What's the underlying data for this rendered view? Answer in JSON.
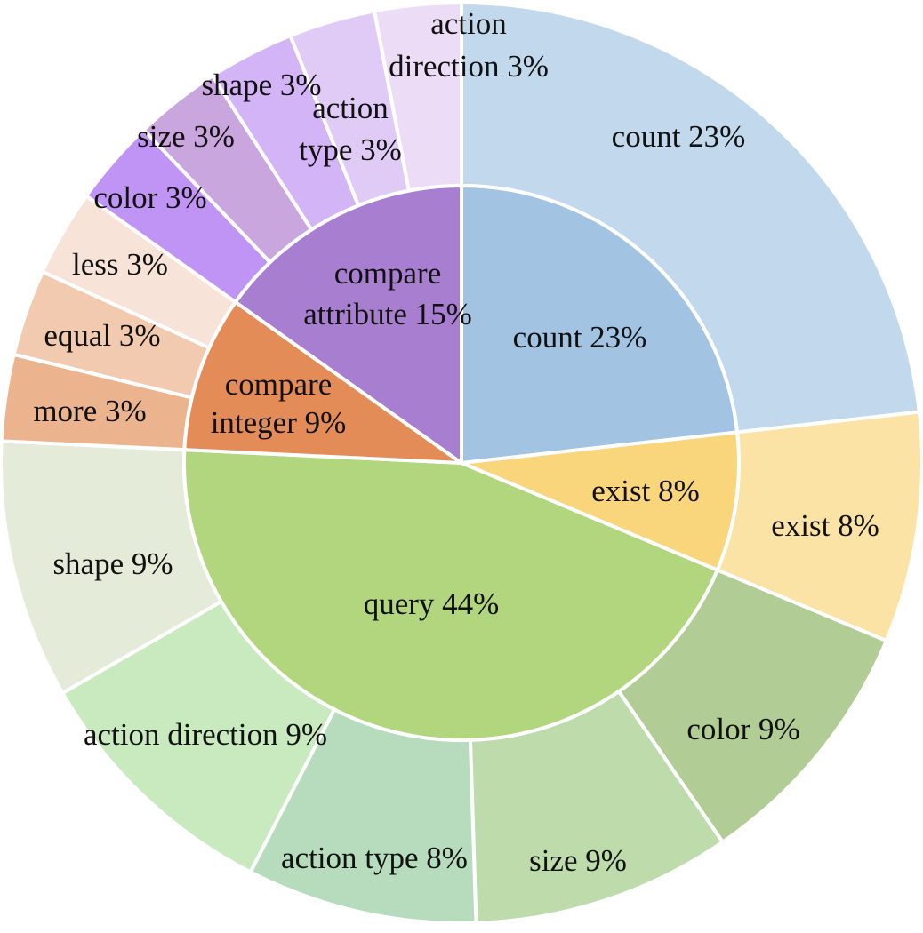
{
  "chart_data": {
    "type": "sunburst",
    "unit": "%",
    "inner": [
      {
        "label": "count 23%",
        "value": 23,
        "color": "#a3c3e3"
      },
      {
        "label": "exist 8%",
        "value": 8,
        "color": "#f9d57c"
      },
      {
        "label": "query 44%",
        "value": 44,
        "color": "#b2d67e"
      },
      {
        "label": "compare integer 9%",
        "value": 9,
        "color": "#e38c57"
      },
      {
        "label": "compare attribute 15%",
        "value": 15,
        "color": "#a87fd0"
      }
    ],
    "outer": [
      {
        "parent": "count",
        "label": "count 23%",
        "value": 23,
        "color": "#c2d8ec"
      },
      {
        "parent": "exist",
        "label": "exist 8%",
        "value": 8,
        "color": "#fbe3a5"
      },
      {
        "parent": "query",
        "label": "color 9%",
        "value": 9,
        "color": "#b2cc95"
      },
      {
        "parent": "query",
        "label": "size 9%",
        "value": 9,
        "color": "#bedcab"
      },
      {
        "parent": "query",
        "label": "action type 8%",
        "value": 8,
        "color": "#b6dcbd"
      },
      {
        "parent": "query",
        "label": "action direction 9%",
        "value": 9,
        "color": "#c9e9bf"
      },
      {
        "parent": "query",
        "label": "shape 9%",
        "value": 9,
        "color": "#e4ecd9"
      },
      {
        "parent": "compare integer",
        "label": "more 3%",
        "value": 3,
        "color": "#ecb48e"
      },
      {
        "parent": "compare integer",
        "label": "equal 3%",
        "value": 3,
        "color": "#f1cab0"
      },
      {
        "parent": "compare integer",
        "label": "less 3%",
        "value": 3,
        "color": "#f7e3d7"
      },
      {
        "parent": "compare attribute",
        "label": "color 3%",
        "value": 3,
        "color": "#bf94f4"
      },
      {
        "parent": "compare attribute",
        "label": "size 3%",
        "value": 3,
        "color": "#c9a6dd"
      },
      {
        "parent": "compare attribute",
        "label": "shape 3%",
        "value": 3,
        "color": "#d3b4f7"
      },
      {
        "parent": "compare attribute",
        "label": "action type 3%",
        "value": 3,
        "color": "#e0cbf6"
      },
      {
        "parent": "compare attribute",
        "label": "action direction 3%",
        "value": 3,
        "color": "#ecdcf6"
      }
    ]
  }
}
